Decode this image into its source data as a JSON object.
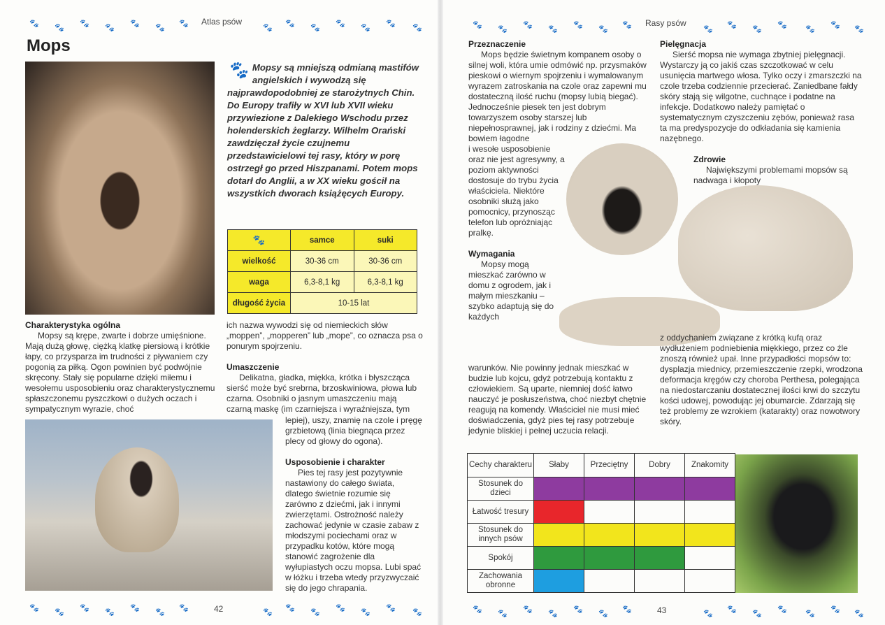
{
  "left_page": {
    "header": "Atlas psów",
    "page_number": "42",
    "title": "Mops",
    "intro": "Mopsy są mniejszą odmianą mastifów angielskich i wywodzą się najprawdopodobniej ze starożytnych Chin. Do Europy trafiły w XVI lub XVII wieku przywiezione z Dalekiego Wschodu przez holenderskich żeglarzy. Wilhelm Orański zawdzięczał życie czujnemu przedstawicielowi tej rasy, który w porę ostrzegł go przed Hiszpanami. Potem mops dotarł do Anglii, a w XX wieku gościł na wszystkich dworach książęcych Europy.",
    "info_table": {
      "headers": [
        "samce",
        "suki"
      ],
      "rows": [
        {
          "label": "wielkość",
          "samce": "30-36 cm",
          "suki": "30-36 cm"
        },
        {
          "label": "waga",
          "samce": "6,3-8,1 kg",
          "suki": "6,3-8,1 kg"
        },
        {
          "label": "długość życia",
          "both": "10-15 lat"
        }
      ]
    },
    "sections": {
      "general_title": "Charakterystyka ogólna",
      "general_text": "Mopsy są krępe, zwarte i dobrze umięśnione. Mają dużą głowę, ciężką klatkę piersiową i krótkie łapy, co przysparza im trudności z pływaniem czy pogonią za piłką. Ogon powinien być podwójnie skręcony. Stały się popularne dzięki miłemu i wesołemu usposobieniu oraz charakterystycznemu spłaszczonemu pyszczkowi o dużych oczach i sympatycznym wyrazie, choć",
      "general_cont": "ich nazwa wywodzi się od niemieckich słów „moppen”, „mopperen” lub „mope”, co oznacza psa o ponurym spojrzeniu.",
      "coat_title": "Umaszczenie",
      "coat_text": "Delikatna, gładka, miękka, krótka i błyszcząca sierść może być srebrna, brzoskwiniowa, płowa lub czarna. Osobniki o jasnym umaszczeniu mają czarną maskę (im czarniejsza i wyraźniejsza, tym",
      "coat_cont": "lepiej), uszy, znamię na czole i pręgę grzbietową (linia biegnąca przez plecy od głowy do ogona).",
      "temper_title": "Usposobienie i charakter",
      "temper_text": "Pies tej rasy jest pozytywnie nastawiony do całego świata, dlatego świetnie rozumie się zarówno z dziećmi, jak i innymi zwierzętami. Ostrożność należy zachować jedynie w czasie zabaw z młodszymi pociechami oraz w przypadku kotów, które mogą stanowić zagrożenie dla wyłupiastych oczu mopsa. Lubi spać w łóżku i trzeba wtedy przyzwyczaić się do jego chrapania."
    }
  },
  "right_page": {
    "header": "Rasy psów",
    "page_number": "43",
    "purpose_title": "Przeznaczenie",
    "purpose_text": "Mops będzie świetnym kompanem osoby o silnej woli, która umie odmówić np. przysmaków pieskowi o wiernym spojrzeniu i wymalowanym wyrazem zatroskania na czole oraz zapewni mu dostateczną ilość ruchu (mopsy lubią biegać). Jednocześnie piesek ten jest dobrym towarzyszem osoby starszej lub niepełnosprawnej, jak i rodziny z dziećmi. Ma bowiem łagodne",
    "purpose_cont": "i wesołe usposobienie oraz nie jest agresywny, a poziom aktywności dostosuje do trybu życia właściciela. Niektóre osobniki służą jako pomocnicy, przynosząc telefon lub opróżniając pralkę.",
    "req_title": "Wymagania",
    "req_text": "Mopsy mogą mieszkać zarówno w domu z ogrodem, jak i małym mieszkaniu – szybko adaptują się do każdych",
    "req_cont": "warunków. Nie powinny jednak mieszkać w budzie lub kojcu, gdyż potrzebują kontaktu z człowiekiem. Są uparte, niemniej dość łatwo nauczyć je posłuszeństwa, choć niezbyt chętnie reagują na komendy. Właściciel nie musi mieć doświadczenia, gdyż pies tej rasy potrzebuje jedynie bliskiej i pełnej uczucia relacji.",
    "care_title": "Pielęgnacja",
    "care_text": "Sierść mopsa nie wymaga zbytniej pielęgnacji. Wystarczy ją co jakiś czas szczotkować w celu usunięcia martwego włosa. Tylko oczy i zmarszczki na czole trzeba codziennie przecierać. Zaniedbane fałdy skóry stają się wilgotne, cuchnące i podatne na infekcje. Dodatkowo należy pamiętać o systematycznym czyszczeniu zębów, ponieważ rasa ta ma predyspozycje do odkładania się kamienia nazębnego.",
    "health_title": "Zdrowie",
    "health_text": "Największymi problemami mopsów są nadwaga i kłopoty",
    "health_cont": "z oddychaniem związane z krótką kufą oraz wydłużeniem podniebienia miękkiego, przez co źle znoszą również upał. Inne przypadłości mopsów to: dysplazja miednicy, przemieszczenie rzepki, wrodzona deformacja kręgów czy choroba Perthesa, polegająca na niedostarczaniu dostatecznej ilości krwi do szczytu kości udowej, powodując jej obumarcie. Zdarzają się też problemy ze wzrokiem (katarakty) oraz nowotwory skóry.",
    "traits_table": {
      "header": "Cechy charakteru",
      "levels": [
        "Słaby",
        "Przeciętny",
        "Dobry",
        "Znakomity"
      ],
      "rows": [
        {
          "label": "Stosunek do dzieci",
          "level": 4,
          "color": "#8e3b9f"
        },
        {
          "label": "Łatwość tresury",
          "level": 1,
          "color": "#e8262b"
        },
        {
          "label": "Stosunek do innych psów",
          "level": 4,
          "color": "#f2e51c"
        },
        {
          "label": "Spokój",
          "level": 3,
          "color": "#2f9a3e"
        },
        {
          "label": "Zachowania obronne",
          "level": 1,
          "color": "#1e9ee0"
        }
      ]
    }
  },
  "colors": {
    "paw": "#c8283a",
    "table_yellow": "#f5e92a",
    "table_light": "#fbf7b8"
  }
}
